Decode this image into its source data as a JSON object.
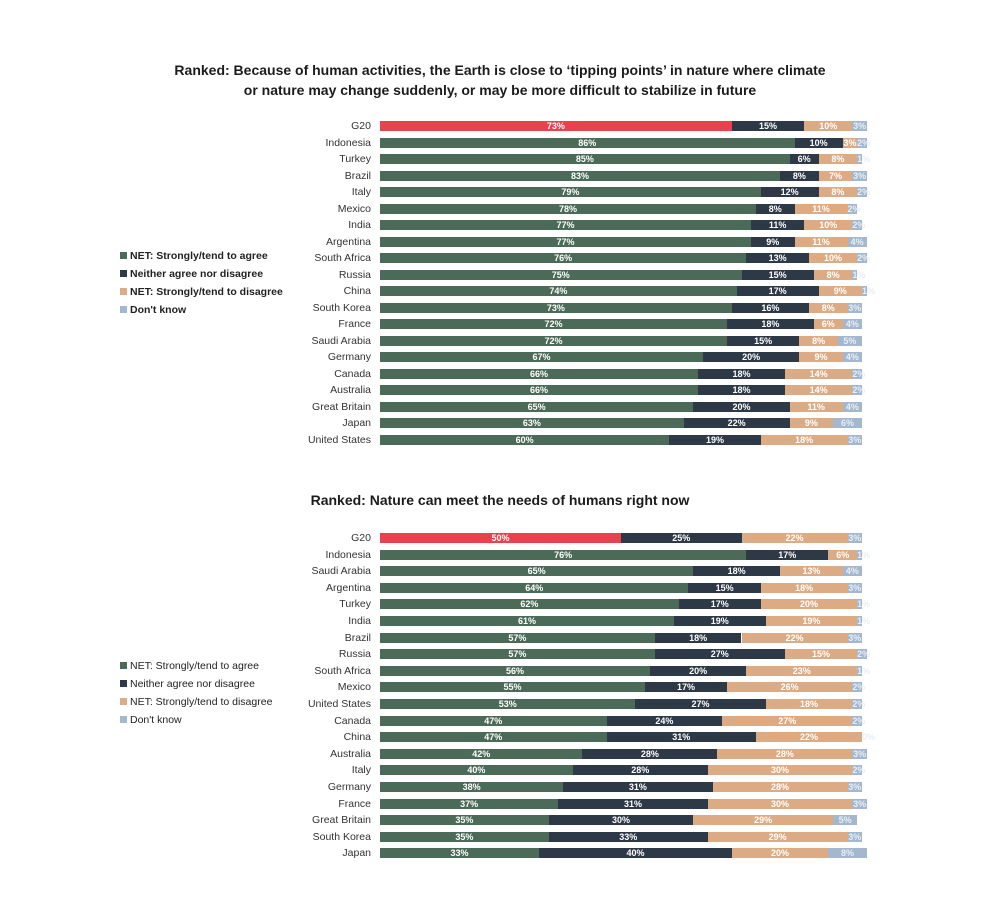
{
  "colors": {
    "g20": "#e8424f",
    "agree": "#4b6b58",
    "neither": "#2e3947",
    "disagree": "#dcab83",
    "dontknow": "#a3b8cf"
  },
  "legend": [
    "NET: Strongly/tend to agree",
    "Neither agree nor disagree",
    "NET: Strongly/tend to disagree",
    "Don't know"
  ],
  "chart_data": [
    {
      "type": "bar",
      "stacked": true,
      "orientation": "horizontal",
      "title": "Ranked: Because of human activities, the Earth is close to 'tipping points' in nature where climate or nature may change suddenly, or may be more difficult to stabilize in future",
      "title_lines": [
        "Ranked: Because of human activities, the Earth is close to ‘tipping points’ in nature where climate",
        "or nature may change suddenly, or may be more difficult to stabilize in future"
      ],
      "categories": [
        "G20",
        "Indonesia",
        "Turkey",
        "Brazil",
        "Italy",
        "Mexico",
        "India",
        "Argentina",
        "South Africa",
        "Russia",
        "China",
        "South Korea",
        "France",
        "Saudi Arabia",
        "Germany",
        "Canada",
        "Australia",
        "Great Britain",
        "Japan",
        "United States"
      ],
      "series": [
        {
          "name": "NET: Strongly/tend to agree",
          "values": [
            73,
            86,
            85,
            83,
            79,
            78,
            77,
            77,
            76,
            75,
            74,
            73,
            72,
            72,
            67,
            66,
            66,
            65,
            63,
            60
          ]
        },
        {
          "name": "Neither agree nor disagree",
          "values": [
            15,
            10,
            6,
            8,
            12,
            8,
            11,
            9,
            13,
            15,
            17,
            16,
            18,
            15,
            20,
            18,
            18,
            20,
            22,
            19
          ]
        },
        {
          "name": "NET: Strongly/tend to disagree",
          "values": [
            10,
            3,
            8,
            7,
            8,
            11,
            10,
            11,
            10,
            8,
            9,
            8,
            6,
            8,
            9,
            14,
            14,
            11,
            9,
            18
          ]
        },
        {
          "name": "Don't know",
          "values": [
            3,
            2,
            1,
            3,
            2,
            2,
            2,
            4,
            2,
            1,
            1,
            3,
            4,
            5,
            4,
            2,
            2,
            4,
            6,
            3
          ]
        }
      ],
      "legend_position": "left"
    },
    {
      "type": "bar",
      "stacked": true,
      "orientation": "horizontal",
      "title": "Ranked: Nature can meet the needs of humans right now",
      "title_lines": [
        "Ranked: Nature can meet the needs of humans right now"
      ],
      "categories": [
        "G20",
        "Indonesia",
        "Saudi Arabia",
        "Argentina",
        "Turkey",
        "India",
        "Brazil",
        "Russia",
        "South Africa",
        "Mexico",
        "United States",
        "Canada",
        "China",
        "Australia",
        "Italy",
        "Germany",
        "France",
        "Great Britain",
        "South Korea",
        "Japan"
      ],
      "series": [
        {
          "name": "NET: Strongly/tend to agree",
          "values": [
            50,
            76,
            65,
            64,
            62,
            61,
            57,
            57,
            56,
            55,
            53,
            47,
            47,
            42,
            40,
            38,
            37,
            35,
            35,
            33
          ]
        },
        {
          "name": "Neither agree nor disagree",
          "values": [
            25,
            17,
            18,
            15,
            17,
            19,
            18,
            27,
            20,
            17,
            27,
            24,
            31,
            28,
            28,
            31,
            31,
            30,
            33,
            40
          ]
        },
        {
          "name": "NET: Strongly/tend to disagree",
          "values": [
            22,
            6,
            13,
            18,
            20,
            19,
            22,
            15,
            23,
            26,
            18,
            27,
            22,
            28,
            30,
            28,
            30,
            29,
            29,
            20
          ]
        },
        {
          "name": "Don't know",
          "values": [
            3,
            1,
            4,
            3,
            1,
            1,
            3,
            2,
            1,
            2,
            2,
            2,
            0,
            3,
            2,
            3,
            3,
            5,
            3,
            8
          ]
        }
      ],
      "legend_position": "left"
    }
  ]
}
